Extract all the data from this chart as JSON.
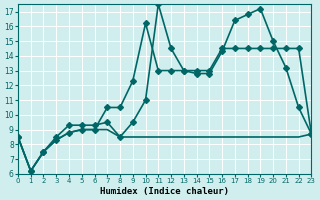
{
  "xlabel": "Humidex (Indice chaleur)",
  "ylabel": "",
  "xlim": [
    0,
    23
  ],
  "ylim": [
    6,
    17.5
  ],
  "yticks": [
    6,
    7,
    8,
    9,
    10,
    11,
    12,
    13,
    14,
    15,
    16,
    17
  ],
  "xticks": [
    0,
    1,
    2,
    3,
    4,
    5,
    6,
    7,
    8,
    9,
    10,
    11,
    12,
    13,
    14,
    15,
    16,
    17,
    18,
    19,
    20,
    21,
    22,
    23
  ],
  "background_color": "#d0eeee",
  "line_color": "#006666",
  "grid_color": "#ffffff",
  "lines": [
    {
      "x": [
        0,
        1,
        2,
        3,
        4,
        5,
        6,
        7,
        8,
        9,
        10,
        11,
        12,
        13,
        14,
        15,
        16,
        17,
        18,
        19,
        20,
        21,
        22,
        23
      ],
      "y": [
        8.5,
        6.2,
        7.5,
        8.5,
        9.3,
        9.3,
        9.3,
        9.5,
        8.5,
        9.5,
        11.0,
        17.5,
        14.5,
        13.0,
        12.8,
        12.8,
        14.3,
        16.4,
        16.8,
        17.2,
        15.0,
        13.2,
        10.5,
        8.7
      ],
      "marker": "D",
      "markersize": 3,
      "linewidth": 1.2,
      "linestyle": "-"
    },
    {
      "x": [
        0,
        1,
        2,
        3,
        4,
        5,
        6,
        7,
        8,
        9,
        10,
        11,
        12,
        13,
        14,
        15,
        16,
        17,
        18,
        19,
        20,
        21,
        22,
        23
      ],
      "y": [
        8.5,
        6.2,
        7.5,
        8.3,
        8.8,
        9.0,
        9.0,
        10.5,
        10.5,
        12.3,
        16.2,
        13.0,
        13.0,
        13.0,
        13.0,
        13.0,
        14.5,
        14.5,
        14.5,
        14.5,
        14.5,
        14.5,
        14.5,
        8.7
      ],
      "marker": "D",
      "markersize": 3,
      "linewidth": 1.2,
      "linestyle": "-"
    },
    {
      "x": [
        0,
        1,
        2,
        3,
        4,
        5,
        6,
        7,
        8,
        9,
        10,
        11,
        12,
        13,
        14,
        15,
        16,
        17,
        18,
        19,
        20,
        21,
        22,
        23
      ],
      "y": [
        8.5,
        6.2,
        7.5,
        8.3,
        8.8,
        9.0,
        9.0,
        9.0,
        8.5,
        8.5,
        8.5,
        8.5,
        8.5,
        8.5,
        8.5,
        8.5,
        8.5,
        8.5,
        8.5,
        8.5,
        8.5,
        8.5,
        8.5,
        8.7
      ],
      "marker": null,
      "markersize": 0,
      "linewidth": 1.2,
      "linestyle": "-"
    }
  ]
}
